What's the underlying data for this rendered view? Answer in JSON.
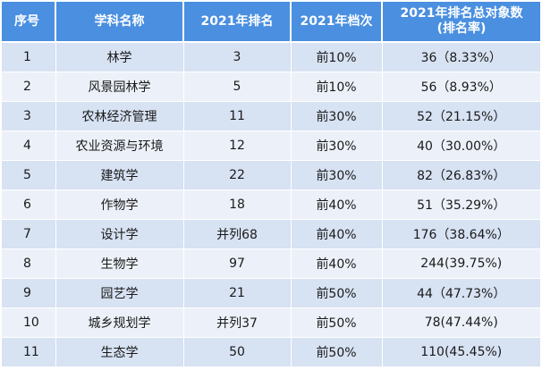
{
  "table": {
    "headers": [
      "序号",
      "学科名称",
      "2021年排名",
      "2021年档次",
      "2021年排名总对象数\n(排名率)"
    ],
    "rows": [
      [
        "1",
        "林学",
        "3",
        "前10%",
        "36（8.33%）"
      ],
      [
        "2",
        "风景园林学",
        "5",
        "前10%",
        "56（8.93%）"
      ],
      [
        "3",
        "农林经济管理",
        "11",
        "前30%",
        "52（21.15%）"
      ],
      [
        "4",
        "农业资源与环境",
        "12",
        "前30%",
        "40（30.00%）"
      ],
      [
        "5",
        "建筑学",
        "22",
        "前30%",
        "82（26.83%）"
      ],
      [
        "6",
        "作物学",
        "18",
        "前40%",
        "51（35.29%）"
      ],
      [
        "7",
        "设计学",
        "并列68",
        "前40%",
        "176（38.64%）"
      ],
      [
        "8",
        "生物学",
        "97",
        "前40%",
        "244(39.75%)"
      ],
      [
        "9",
        "园艺学",
        "21",
        "前50%",
        "44（47.73%）"
      ],
      [
        "10",
        "城乡规划学",
        "并列37",
        "前50%",
        "78(47.44%)"
      ],
      [
        "11",
        "生态学",
        "50",
        "前50%",
        "110(45.45%)"
      ]
    ]
  },
  "colors": {
    "header_bg": "#4a8fe0",
    "row_odd": "#d7e2f3",
    "row_even": "#ecf1f9"
  }
}
